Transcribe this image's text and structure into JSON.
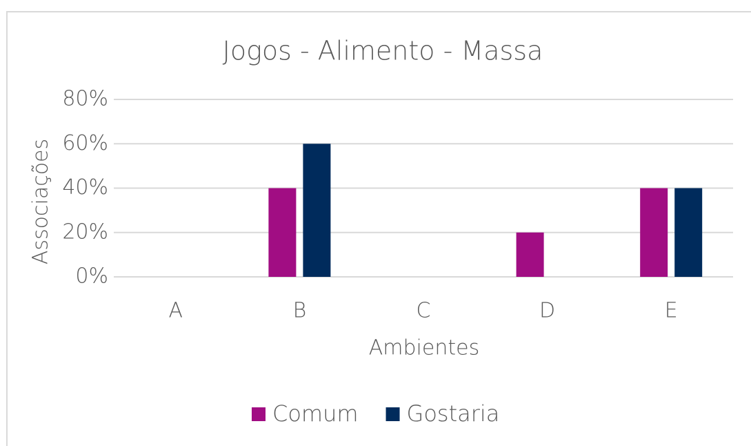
{
  "chart_data": {
    "type": "bar",
    "title": "Jogos - Alimento - Massa",
    "x_label": "Ambientes",
    "y_label": "Associações",
    "categories": [
      "A",
      "B",
      "C",
      "D",
      "E"
    ],
    "series": [
      {
        "name": "Comum",
        "color": "#a10d83",
        "values": [
          0,
          40,
          0,
          20,
          40
        ]
      },
      {
        "name": "Gostaria",
        "color": "#002b5c",
        "values": [
          0,
          60,
          0,
          0,
          40
        ]
      }
    ],
    "ylim": [
      0,
      80
    ],
    "yticks": [
      {
        "value": 0,
        "label": "0%"
      },
      {
        "value": 20,
        "label": "20%"
      },
      {
        "value": 40,
        "label": "40%"
      },
      {
        "value": 60,
        "label": "60%"
      },
      {
        "value": 80,
        "label": "80%"
      }
    ],
    "grid": true,
    "legend": "bottom"
  }
}
